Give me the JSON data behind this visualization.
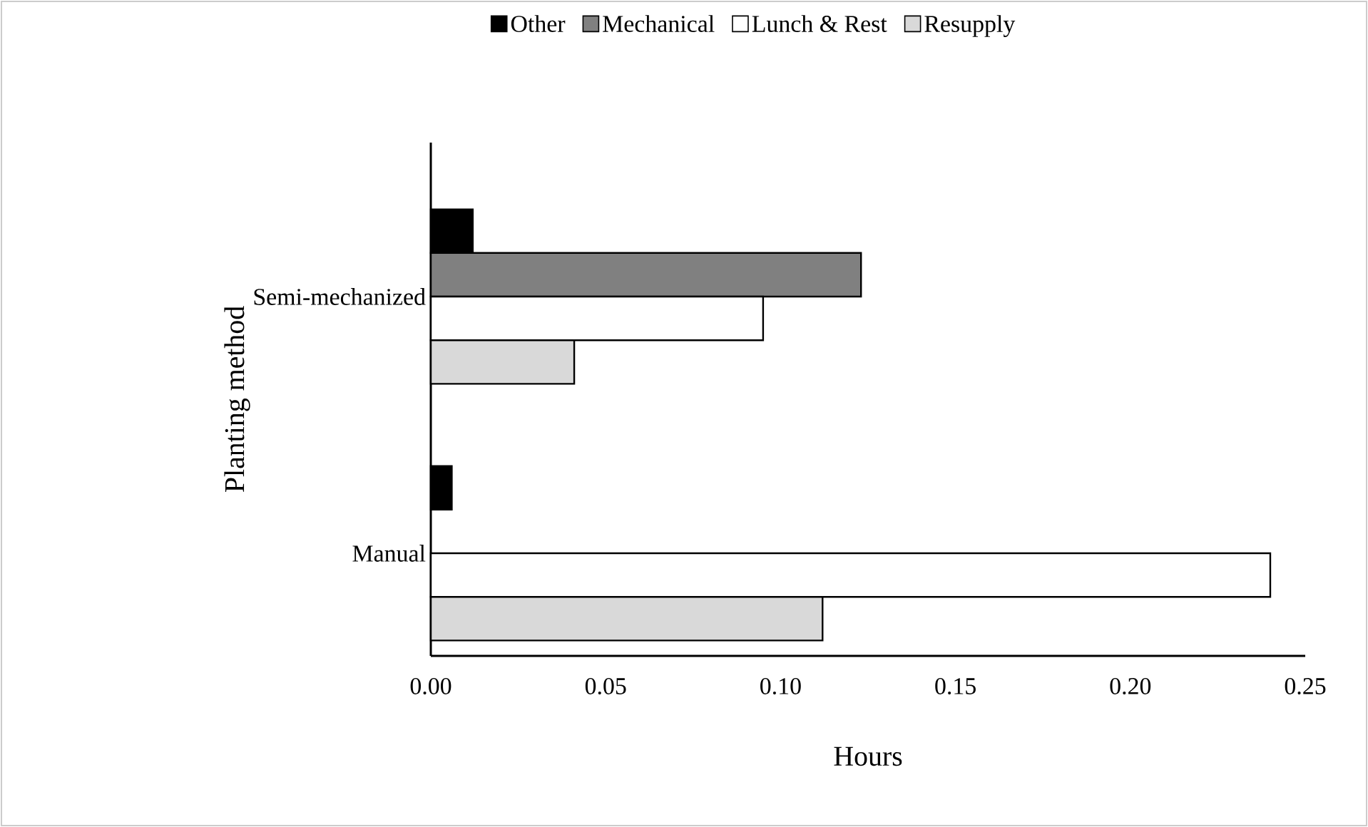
{
  "chart_data": {
    "type": "bar",
    "orientation": "horizontal",
    "xlabel": "Hours",
    "ylabel": "Planting method",
    "categories": [
      "Semi-mechanized",
      "Manual"
    ],
    "series": [
      {
        "name": "Other",
        "color": "#000000",
        "values": [
          0.012,
          0.006
        ]
      },
      {
        "name": "Mechanical",
        "color": "#808080",
        "values": [
          0.123,
          null
        ]
      },
      {
        "name": "Lunch & Rest",
        "color": "#ffffff",
        "values": [
          0.095,
          0.24
        ]
      },
      {
        "name": "Resupply",
        "color": "#d9d9d9",
        "values": [
          0.041,
          0.112
        ]
      }
    ],
    "xlim": [
      0,
      0.25
    ],
    "xticks": [
      {
        "value": 0,
        "label": "0.00"
      },
      {
        "value": 0.05,
        "label": "0.05"
      },
      {
        "value": 0.1,
        "label": "0.10"
      },
      {
        "value": 0.15,
        "label": "0.15"
      },
      {
        "value": 0.2,
        "label": "0.20"
      },
      {
        "value": 0.25,
        "label": "0.25"
      }
    ],
    "grid": false,
    "legend": "top"
  }
}
